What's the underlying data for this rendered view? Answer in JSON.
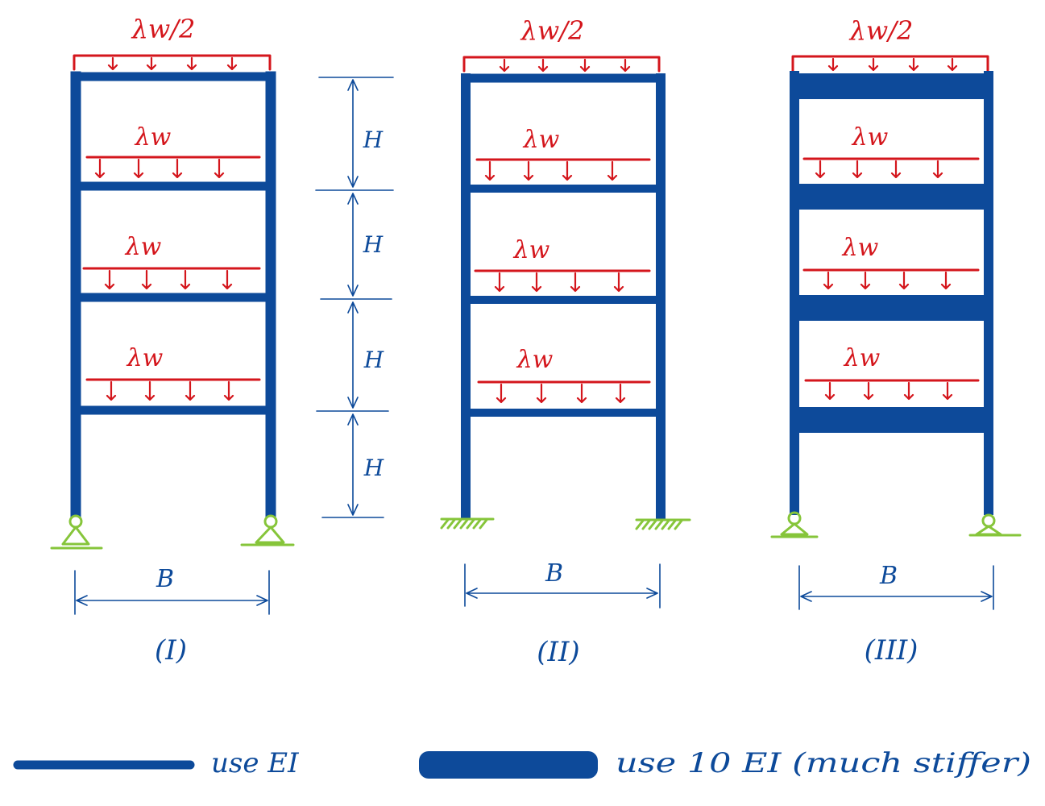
{
  "colors": {
    "frame": "#0d4a9a",
    "load": "#d4161c",
    "support": "#86c53a",
    "background": "#ffffff"
  },
  "frames": [
    {
      "id": "I",
      "label": "(I)",
      "top_load_label": "λw/2",
      "floor_load_labels": [
        "λw",
        "λw",
        "λw"
      ],
      "beam_stiffness": "EI",
      "supports": "pinned",
      "width_label": "B"
    },
    {
      "id": "II",
      "label": "(II)",
      "top_load_label": "λw/2",
      "floor_load_labels": [
        "λw",
        "λw",
        "λw"
      ],
      "beam_stiffness": "EI",
      "supports": "fixed",
      "width_label": "B"
    },
    {
      "id": "III",
      "label": "(III)",
      "top_load_label": "λw/2",
      "floor_load_labels": [
        "λw",
        "λw",
        "λw"
      ],
      "beam_stiffness": "10 EI",
      "supports": "pinned",
      "width_label": "B"
    }
  ],
  "story_height_labels": [
    "H",
    "H",
    "H",
    "H"
  ],
  "legend": {
    "thin_label": "use EI",
    "thick_label": "use 10 EI (much stiffer)"
  }
}
